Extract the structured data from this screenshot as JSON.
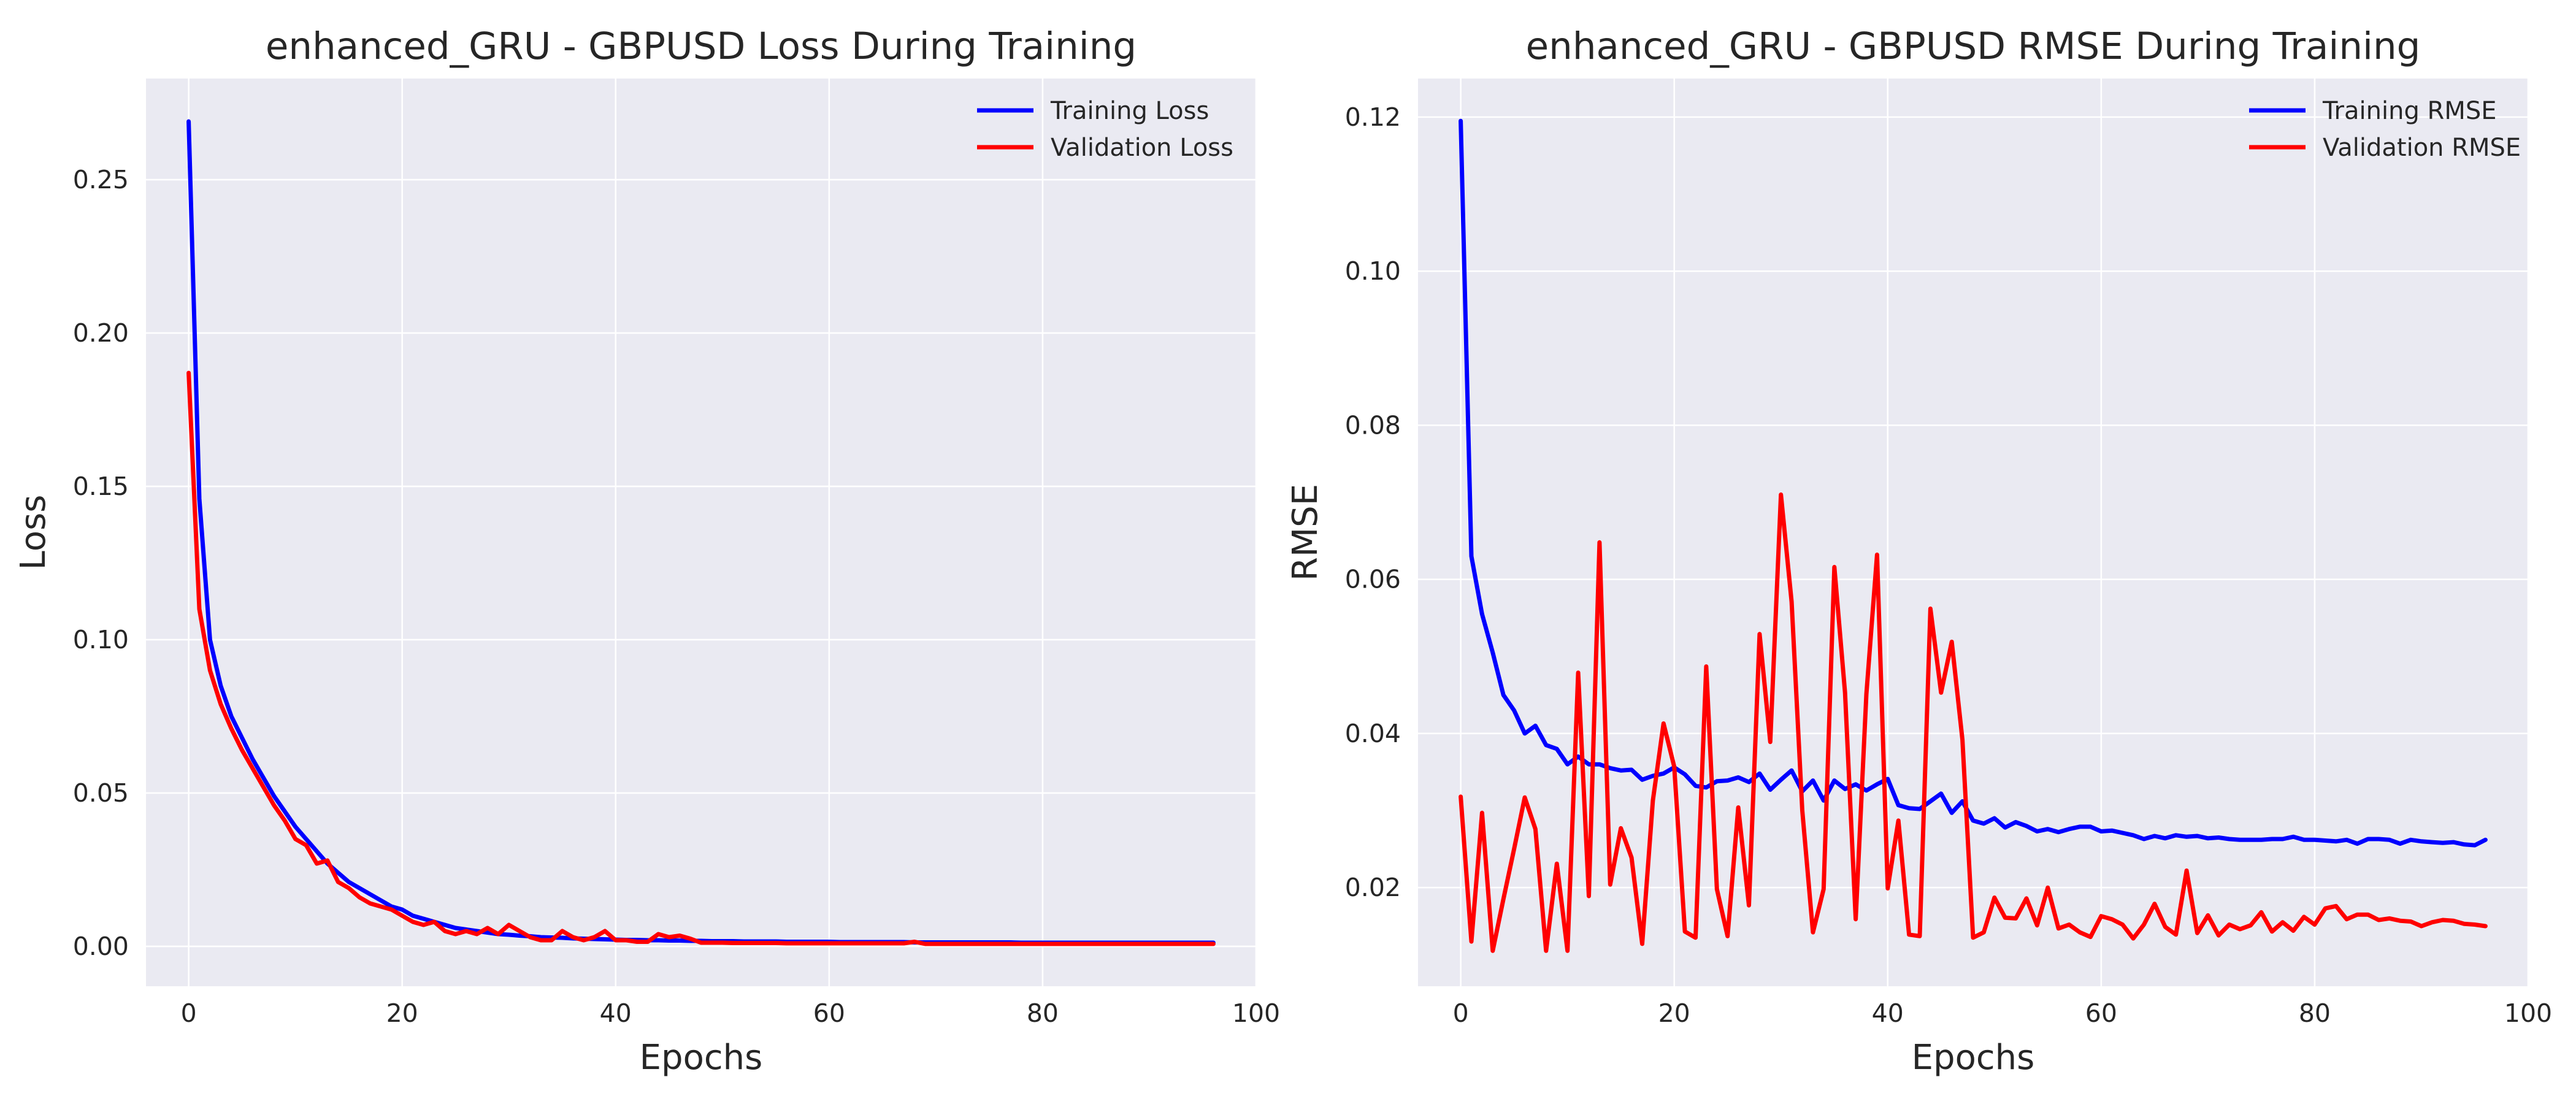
{
  "chart_data": [
    {
      "type": "line",
      "title": "enhanced_GRU - GBPUSD Loss During Training",
      "xlabel": "Epochs",
      "ylabel": "Loss",
      "xlim": [
        -4,
        100
      ],
      "ylim": [
        -0.013,
        0.283
      ],
      "xticks": [
        0,
        20,
        40,
        60,
        80,
        100
      ],
      "yticks": [
        0.0,
        0.05,
        0.1,
        0.15,
        0.2,
        0.25
      ],
      "xtick_labels": [
        "0",
        "20",
        "40",
        "60",
        "80",
        "100"
      ],
      "ytick_labels": [
        "0.00",
        "0.05",
        "0.10",
        "0.15",
        "0.20",
        "0.25"
      ],
      "grid": true,
      "legend_position": "top-right",
      "x_start": 0,
      "series": [
        {
          "name": "Training Loss",
          "color": "#0000ff",
          "values": [
            0.269,
            0.146,
            0.1,
            0.085,
            0.075,
            0.068,
            0.061,
            0.055,
            0.049,
            0.044,
            0.039,
            0.035,
            0.031,
            0.027,
            0.024,
            0.021,
            0.019,
            0.017,
            0.015,
            0.013,
            0.012,
            0.01,
            0.009,
            0.008,
            0.007,
            0.006,
            0.0055,
            0.005,
            0.0045,
            0.004,
            0.0038,
            0.0035,
            0.0033,
            0.003,
            0.0029,
            0.0028,
            0.0026,
            0.0025,
            0.0024,
            0.0023,
            0.0022,
            0.0021,
            0.0021,
            0.002,
            0.002,
            0.0019,
            0.0019,
            0.0018,
            0.0018,
            0.0017,
            0.0017,
            0.0017,
            0.0016,
            0.0016,
            0.0016,
            0.0016,
            0.0015,
            0.0015,
            0.0015,
            0.0015,
            0.0015,
            0.0014,
            0.0014,
            0.0014,
            0.0014,
            0.0014,
            0.0014,
            0.0014,
            0.0013,
            0.0013,
            0.0013,
            0.0013,
            0.0013,
            0.0013,
            0.0013,
            0.0013,
            0.0013,
            0.0013,
            0.0012,
            0.0012,
            0.0012,
            0.0012,
            0.0012,
            0.0012,
            0.0012,
            0.0012,
            0.0012,
            0.0012,
            0.0012,
            0.0012,
            0.0012,
            0.0012,
            0.0012,
            0.0012,
            0.0012,
            0.0012,
            0.0012
          ]
        },
        {
          "name": "Validation Loss",
          "color": "#ff0000",
          "values": [
            0.187,
            0.11,
            0.09,
            0.079,
            0.071,
            0.064,
            0.058,
            0.052,
            0.046,
            0.041,
            0.035,
            0.033,
            0.027,
            0.028,
            0.021,
            0.019,
            0.016,
            0.014,
            0.013,
            0.012,
            0.01,
            0.008,
            0.007,
            0.008,
            0.005,
            0.004,
            0.005,
            0.004,
            0.006,
            0.004,
            0.007,
            0.005,
            0.003,
            0.002,
            0.002,
            0.005,
            0.003,
            0.002,
            0.003,
            0.005,
            0.002,
            0.002,
            0.0015,
            0.0015,
            0.004,
            0.003,
            0.0035,
            0.0025,
            0.0012,
            0.0012,
            0.0012,
            0.0011,
            0.0011,
            0.0011,
            0.0011,
            0.0011,
            0.001,
            0.001,
            0.001,
            0.001,
            0.001,
            0.001,
            0.001,
            0.001,
            0.001,
            0.001,
            0.001,
            0.001,
            0.0015,
            0.0008,
            0.0008,
            0.0008,
            0.0008,
            0.0008,
            0.0008,
            0.0008,
            0.0008,
            0.0008,
            0.0008,
            0.0008,
            0.0008,
            0.0008,
            0.0008,
            0.0008,
            0.0008,
            0.0008,
            0.0008,
            0.0008,
            0.0008,
            0.0008,
            0.0008,
            0.0008,
            0.0008,
            0.0008,
            0.0008,
            0.0008,
            0.0008
          ]
        }
      ]
    },
    {
      "type": "line",
      "title": "enhanced_GRU - GBPUSD RMSE During Training",
      "xlabel": "Epochs",
      "ylabel": "RMSE",
      "xlim": [
        -4,
        100
      ],
      "ylim": [
        0.0072,
        0.125
      ],
      "xticks": [
        0,
        20,
        40,
        60,
        80,
        100
      ],
      "yticks": [
        0.02,
        0.04,
        0.06,
        0.08,
        0.1,
        0.12
      ],
      "xtick_labels": [
        "0",
        "20",
        "40",
        "60",
        "80",
        "100"
      ],
      "ytick_labels": [
        "0.02",
        "0.04",
        "0.06",
        "0.08",
        "0.10",
        "0.12"
      ],
      "grid": true,
      "legend_position": "top-right",
      "x_start": 0,
      "series": [
        {
          "name": "Training RMSE",
          "color": "#0000ff",
          "values": [
            0.1195,
            0.063,
            0.0555,
            0.0505,
            0.045,
            0.043,
            0.04,
            0.041,
            0.0385,
            0.038,
            0.036,
            0.037,
            0.036,
            0.036,
            0.0355,
            0.0352,
            0.0353,
            0.034,
            0.0345,
            0.0348,
            0.0356,
            0.0347,
            0.0332,
            0.033,
            0.0338,
            0.0339,
            0.0343,
            0.0337,
            0.0348,
            0.0327,
            0.034,
            0.0352,
            0.0325,
            0.0339,
            0.0313,
            0.0339,
            0.0328,
            0.0334,
            0.0326,
            0.0334,
            0.0341,
            0.0307,
            0.0303,
            0.0302,
            0.0312,
            0.0322,
            0.0297,
            0.0312,
            0.0287,
            0.0283,
            0.029,
            0.0278,
            0.0285,
            0.028,
            0.0273,
            0.0276,
            0.0272,
            0.0276,
            0.0279,
            0.0279,
            0.0273,
            0.0274,
            0.0271,
            0.0268,
            0.0263,
            0.0267,
            0.0264,
            0.0268,
            0.0266,
            0.0267,
            0.0264,
            0.0265,
            0.0263,
            0.0262,
            0.0262,
            0.0262,
            0.0263,
            0.0263,
            0.0266,
            0.0262,
            0.0262,
            0.0261,
            0.026,
            0.0262,
            0.0257,
            0.0263,
            0.0263,
            0.0262,
            0.0257,
            0.0262,
            0.026,
            0.0259,
            0.0258,
            0.0259,
            0.0256,
            0.0255,
            0.0262
          ]
        },
        {
          "name": "Validation RMSE",
          "color": "#ff0000",
          "values": [
            0.0318,
            0.013,
            0.0297,
            0.0118,
            0.0185,
            0.025,
            0.0317,
            0.0276,
            0.0118,
            0.0231,
            0.0118,
            0.0479,
            0.0189,
            0.0648,
            0.0204,
            0.0277,
            0.0239,
            0.0127,
            0.0313,
            0.0413,
            0.0357,
            0.0143,
            0.0135,
            0.0487,
            0.0198,
            0.0137,
            0.0304,
            0.0177,
            0.0529,
            0.0389,
            0.071,
            0.0571,
            0.03,
            0.0142,
            0.0198,
            0.0616,
            0.0453,
            0.0159,
            0.0451,
            0.0632,
            0.0199,
            0.0287,
            0.0139,
            0.0137,
            0.0562,
            0.0453,
            0.0519,
            0.0392,
            0.0135,
            0.0142,
            0.0187,
            0.0161,
            0.016,
            0.0186,
            0.0151,
            0.02,
            0.0147,
            0.0152,
            0.0142,
            0.0136,
            0.0163,
            0.0159,
            0.0152,
            0.0134,
            0.0152,
            0.0179,
            0.0149,
            0.0139,
            0.0222,
            0.0141,
            0.0164,
            0.0138,
            0.0152,
            0.0146,
            0.0151,
            0.0168,
            0.0143,
            0.0155,
            0.0144,
            0.0162,
            0.0152,
            0.0173,
            0.0176,
            0.0159,
            0.0165,
            0.0165,
            0.0158,
            0.016,
            0.0157,
            0.0156,
            0.015,
            0.0155,
            0.0158,
            0.0157,
            0.0153,
            0.0152,
            0.015
          ]
        }
      ]
    }
  ]
}
